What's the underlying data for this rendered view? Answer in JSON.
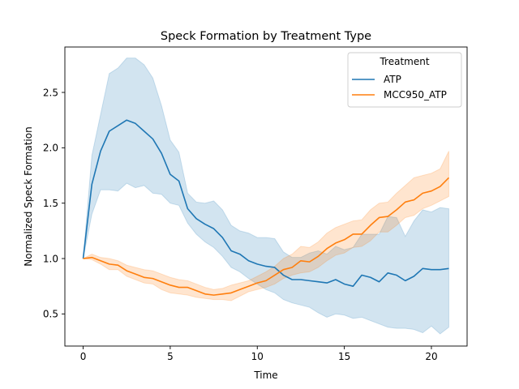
{
  "chart_data": {
    "type": "line",
    "title": "Speck Formation by Treatment Type",
    "xlabel": "Time",
    "ylabel": "Normalized Speck Formation",
    "xlim": [
      -1.05,
      22.05
    ],
    "ylim": [
      0.21,
      2.91
    ],
    "xticks": [
      0,
      5,
      10,
      15,
      20
    ],
    "yticks": [
      0.5,
      1.0,
      1.5,
      2.0,
      2.5
    ],
    "grid": false,
    "legend": {
      "title": "Treatment",
      "position": "top-right"
    },
    "x": [
      0,
      0.5,
      1,
      1.5,
      2,
      2.5,
      3,
      3.5,
      4,
      4.5,
      5,
      5.5,
      6,
      6.5,
      7,
      7.5,
      8,
      8.5,
      9,
      9.5,
      10,
      10.5,
      11,
      11.5,
      12,
      12.5,
      13,
      13.5,
      14,
      14.5,
      15,
      15.5,
      16,
      16.5,
      17,
      17.5,
      18,
      18.5,
      19,
      19.5,
      20,
      20.5,
      21
    ],
    "series": [
      {
        "name": "ATP",
        "color": "#1f77b4",
        "values": [
          1.0,
          1.67,
          1.97,
          2.15,
          2.2,
          2.25,
          2.22,
          2.15,
          2.08,
          1.95,
          1.76,
          1.7,
          1.45,
          1.36,
          1.31,
          1.27,
          1.19,
          1.07,
          1.04,
          0.98,
          0.95,
          0.93,
          0.92,
          0.85,
          0.81,
          0.81,
          0.8,
          0.79,
          0.78,
          0.81,
          0.77,
          0.75,
          0.85,
          0.83,
          0.79,
          0.87,
          0.85,
          0.8,
          0.84,
          0.91,
          0.9,
          0.9,
          0.91
        ],
        "lower": [
          1.0,
          1.4,
          1.62,
          1.62,
          1.61,
          1.68,
          1.64,
          1.66,
          1.59,
          1.58,
          1.5,
          1.48,
          1.32,
          1.22,
          1.15,
          1.1,
          1.02,
          0.92,
          0.88,
          0.82,
          0.77,
          0.72,
          0.69,
          0.63,
          0.6,
          0.58,
          0.56,
          0.51,
          0.47,
          0.5,
          0.49,
          0.46,
          0.47,
          0.44,
          0.41,
          0.38,
          0.37,
          0.37,
          0.36,
          0.33,
          0.39,
          0.32,
          0.38
        ],
        "upper": [
          1.0,
          1.93,
          2.3,
          2.67,
          2.72,
          2.81,
          2.81,
          2.75,
          2.63,
          2.38,
          2.07,
          1.96,
          1.59,
          1.51,
          1.5,
          1.52,
          1.44,
          1.3,
          1.25,
          1.23,
          1.19,
          1.19,
          1.18,
          1.06,
          1.01,
          1.01,
          1.05,
          1.07,
          1.04,
          1.11,
          1.08,
          1.1,
          1.22,
          1.22,
          1.22,
          1.38,
          1.37,
          1.2,
          1.34,
          1.44,
          1.42,
          1.46,
          1.45
        ]
      },
      {
        "name": "MCC950_ATP",
        "color": "#ff7f0e",
        "values": [
          1.0,
          1.01,
          0.98,
          0.95,
          0.94,
          0.89,
          0.86,
          0.83,
          0.82,
          0.79,
          0.76,
          0.74,
          0.74,
          0.71,
          0.68,
          0.67,
          0.68,
          0.69,
          0.72,
          0.75,
          0.78,
          0.8,
          0.85,
          0.9,
          0.92,
          0.98,
          0.97,
          1.02,
          1.09,
          1.14,
          1.17,
          1.22,
          1.22,
          1.3,
          1.37,
          1.38,
          1.44,
          1.51,
          1.53,
          1.59,
          1.61,
          1.65,
          1.73
        ],
        "lower": [
          1.0,
          0.99,
          0.95,
          0.9,
          0.9,
          0.84,
          0.81,
          0.78,
          0.77,
          0.72,
          0.69,
          0.68,
          0.67,
          0.65,
          0.64,
          0.63,
          0.63,
          0.62,
          0.66,
          0.7,
          0.72,
          0.74,
          0.77,
          0.82,
          0.85,
          0.87,
          0.88,
          0.92,
          0.98,
          1.03,
          1.05,
          1.1,
          1.11,
          1.16,
          1.24,
          1.24,
          1.3,
          1.37,
          1.39,
          1.45,
          1.48,
          1.52,
          1.56
        ],
        "upper": [
          1.0,
          1.04,
          1.01,
          1.0,
          0.98,
          0.94,
          0.92,
          0.9,
          0.89,
          0.86,
          0.83,
          0.81,
          0.8,
          0.77,
          0.74,
          0.72,
          0.73,
          0.76,
          0.78,
          0.8,
          0.84,
          0.88,
          0.93,
          1.0,
          1.04,
          1.11,
          1.1,
          1.15,
          1.23,
          1.28,
          1.31,
          1.34,
          1.35,
          1.44,
          1.5,
          1.51,
          1.59,
          1.66,
          1.73,
          1.75,
          1.77,
          1.81,
          1.97
        ]
      }
    ]
  }
}
